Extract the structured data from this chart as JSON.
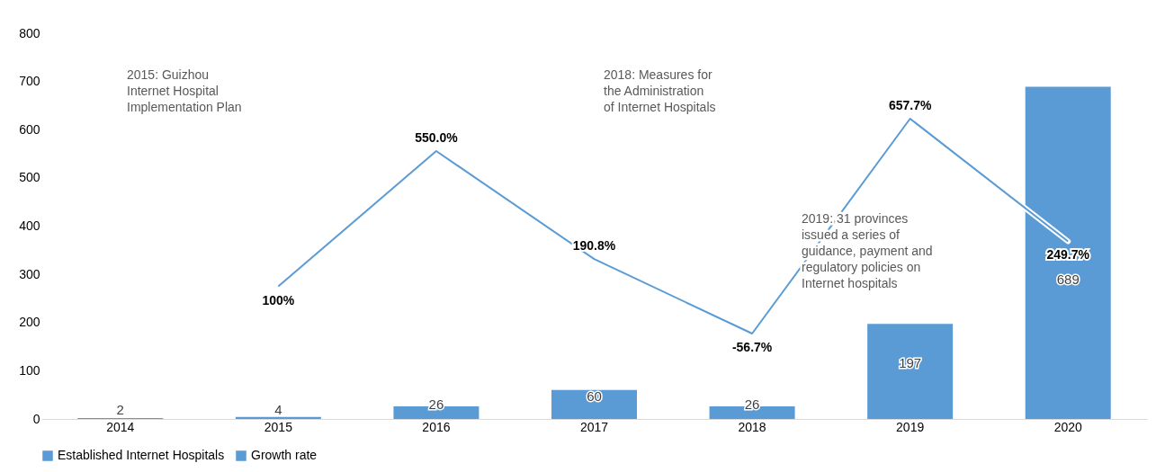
{
  "chart_data": {
    "type": "bar",
    "categories": [
      "2014",
      "2015",
      "2016",
      "2017",
      "2018",
      "2019",
      "2020"
    ],
    "series": [
      {
        "name": "Established Internet Hospitals",
        "color": "#5b9bd5",
        "values": [
          2,
          4,
          26,
          60,
          26,
          197,
          689
        ],
        "value_labels": [
          "2",
          "4",
          "26",
          "60",
          "26",
          "197",
          "689"
        ]
      },
      {
        "name": "Growth rate",
        "type": "line",
        "axis": "y2",
        "color": "#5b9bd5",
        "values": [
          null,
          100,
          550,
          190.8,
          -56.7,
          657.7,
          249.7
        ],
        "value_labels": [
          null,
          "100%",
          "550.0%",
          "190.8%",
          "-56.7%",
          "657.7%",
          "249.7%"
        ]
      }
    ],
    "ylim": [
      0,
      800
    ],
    "yticks": [
      0,
      100,
      200,
      300,
      400,
      500,
      600,
      700,
      800
    ],
    "grid": false,
    "legend": "bottom",
    "annotations": [
      "2015: Guizhou\nInternet Hospital\nImplementation Plan",
      "2018: Measures for\nthe Administration\nof Internet Hospitals",
      "2019: 31 provinces\nissued a series of\nguidance, payment and\nregulatory policies on\nInternet hospitals"
    ]
  }
}
